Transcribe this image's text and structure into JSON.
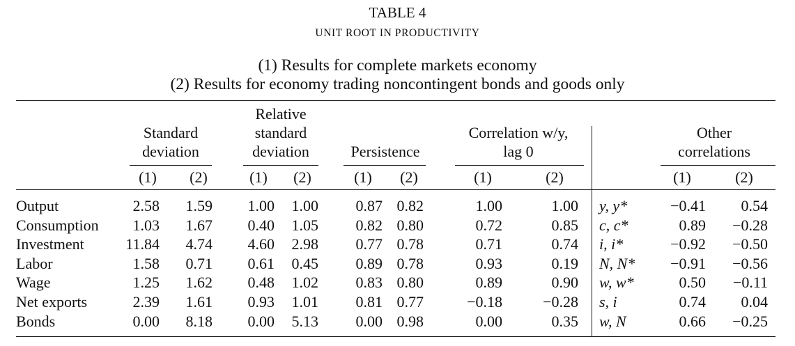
{
  "title": {
    "table_word": "TABLE",
    "number": "4",
    "subtitle": "UNIT ROOT IN PRODUCTIVITY"
  },
  "notes": [
    "(1) Results for complete markets economy",
    "(2) Results for economy trading noncontingent bonds and goods only"
  ],
  "column_groups": [
    {
      "lines": [
        "Standard",
        "deviation"
      ]
    },
    {
      "lines": [
        "Relative",
        "standard",
        "deviation"
      ]
    },
    {
      "lines": [
        "Persistence"
      ]
    },
    {
      "lines": [
        "Correlation w/y,",
        "lag 0"
      ]
    },
    {
      "lines": [
        "Other",
        "correlations"
      ]
    }
  ],
  "subheaders": [
    "(1)",
    "(2)"
  ],
  "rows": [
    {
      "label": "Output",
      "values": [
        "2.58",
        "1.59",
        "1.00",
        "1.00",
        "0.87",
        "0.82",
        "1.00",
        "1.00"
      ],
      "pair": "y, y*",
      "other": [
        "−0.41",
        "0.54"
      ]
    },
    {
      "label": "Consumption",
      "values": [
        "1.03",
        "1.67",
        "0.40",
        "1.05",
        "0.82",
        "0.80",
        "0.72",
        "0.85"
      ],
      "pair": "c, c*",
      "other": [
        "0.89",
        "−0.28"
      ]
    },
    {
      "label": "Investment",
      "values": [
        "11.84",
        "4.74",
        "4.60",
        "2.98",
        "0.77",
        "0.78",
        "0.71",
        "0.74"
      ],
      "pair": "i, i*",
      "other": [
        "−0.92",
        "−0.50"
      ]
    },
    {
      "label": "Labor",
      "values": [
        "1.58",
        "0.71",
        "0.61",
        "0.45",
        "0.89",
        "0.78",
        "0.93",
        "0.19"
      ],
      "pair": "N, N*",
      "other": [
        "−0.91",
        "−0.56"
      ]
    },
    {
      "label": "Wage",
      "values": [
        "1.25",
        "1.62",
        "0.48",
        "1.02",
        "0.83",
        "0.80",
        "0.89",
        "0.90"
      ],
      "pair": "w, w*",
      "other": [
        "0.50",
        "−0.11"
      ]
    },
    {
      "label": "Net exports",
      "values": [
        "2.39",
        "1.61",
        "0.93",
        "1.01",
        "0.81",
        "0.77",
        "−0.18",
        "−0.28"
      ],
      "pair": "s, i",
      "other": [
        "0.74",
        "0.04"
      ]
    },
    {
      "label": "Bonds",
      "values": [
        "0.00",
        "8.18",
        "0.00",
        "5.13",
        "0.00",
        "0.98",
        "0.00",
        "0.35"
      ],
      "pair": "w, N",
      "other": [
        "0.66",
        "−0.25"
      ]
    }
  ]
}
